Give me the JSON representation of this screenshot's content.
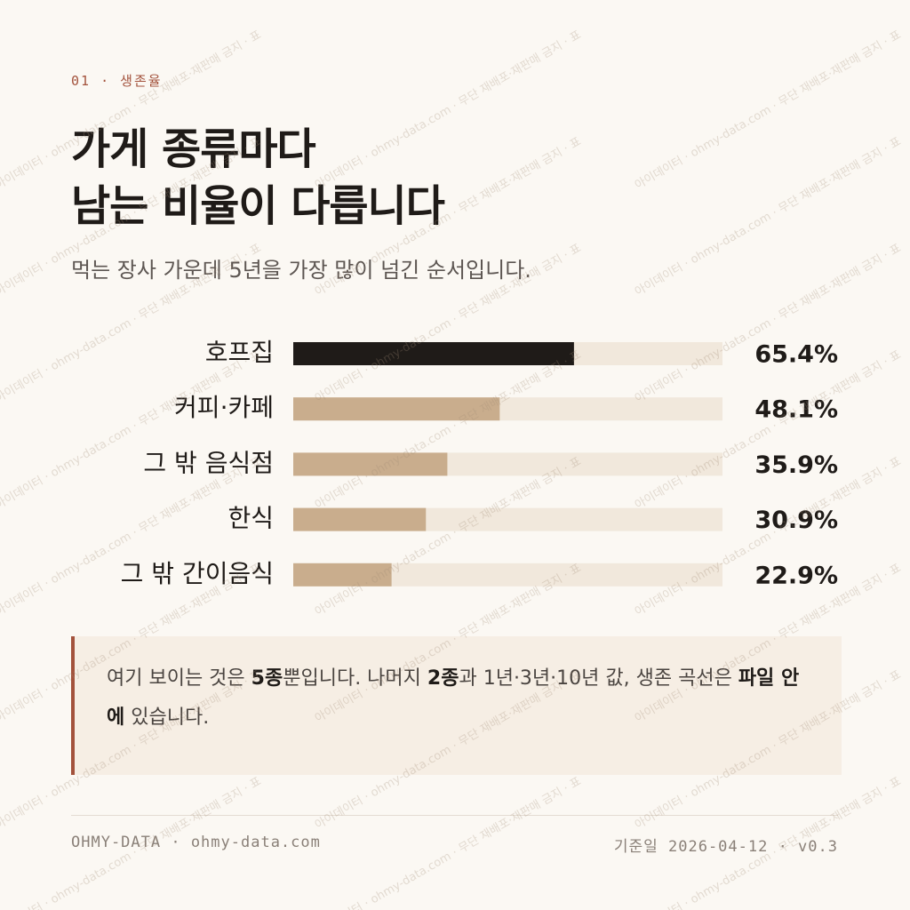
{
  "chart_data": {
    "type": "bar",
    "orientation": "horizontal",
    "eyebrow": "01 · 생존율",
    "title": [
      "가게 종류마다",
      "남는 비율이 다릅니다"
    ],
    "subtitle": "먹는 장사 가운데 5년을 가장 많이 넘긴 순서입니다.",
    "categories": [
      "호프집",
      "커피·카페",
      "그 밖 음식점",
      "한식",
      "그 밖 간이음식"
    ],
    "values": [
      65.4,
      48.1,
      35.9,
      30.9,
      22.9
    ],
    "value_labels": [
      "65.4%",
      "48.1%",
      "35.9%",
      "30.9%",
      "22.9%"
    ],
    "colors": [
      "#1f1b18",
      "#c9ad8d",
      "#c9ad8d",
      "#c9ad8d",
      "#c9ad8d"
    ],
    "track_color": "#f1e8dc",
    "xlim": [
      0,
      100
    ],
    "note": [
      {
        "text": "여기 보이는 것은 ",
        "bold": false
      },
      {
        "text": "5종",
        "bold": true
      },
      {
        "text": "뿐입니다. 나머지 ",
        "bold": false
      },
      {
        "text": "2종",
        "bold": true
      },
      {
        "text": "과 1년·3년·10년 값, 생존 곡선은 ",
        "bold": false
      },
      {
        "text": "파일 안에",
        "bold": true
      },
      {
        "text": " 있습니다.",
        "bold": false
      }
    ],
    "footer_left": "OHMY-DATA · ohmy-data.com",
    "footer_right": "기준일 2026-04-12 · v0.3",
    "watermark": "아이데이터 · ohmy-data.com · 무단 재배포·재판매 금지 · 표"
  }
}
